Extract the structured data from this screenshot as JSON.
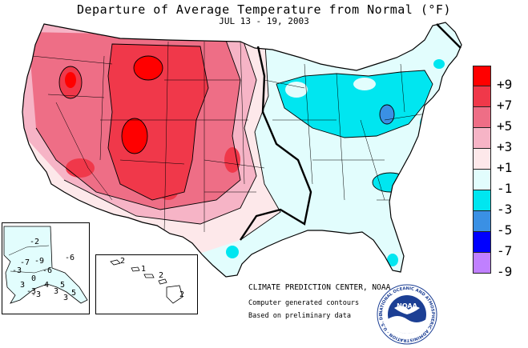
{
  "header": {
    "title": "Departure of Average Temperature from Normal (°F)",
    "dates": "JUL 13 - 19, 2003"
  },
  "legend": {
    "items": [
      {
        "label": "+9",
        "color": "#ff0000"
      },
      {
        "label": "+7",
        "color": "#f0384a"
      },
      {
        "label": "+5",
        "color": "#ee6e86"
      },
      {
        "label": "+3",
        "color": "#f6b4c6"
      },
      {
        "label": "+1",
        "color": "#fde8ea"
      },
      {
        "label": "-1",
        "color": "#e2fdfd"
      },
      {
        "label": "-3",
        "color": "#00e6f0"
      },
      {
        "label": "-5",
        "color": "#3a90e4"
      },
      {
        "label": "-7",
        "color": "#0000ff"
      },
      {
        "label": "-9",
        "color": "#c080ff"
      }
    ]
  },
  "credits": {
    "center": "CLIMATE PREDICTION CENTER, NOAA",
    "line1": "Computer generated contours",
    "line2": "Based on preliminary data"
  },
  "alaska": {
    "labels": [
      "-2",
      "-6",
      "-7",
      "-9",
      "-3",
      "-6",
      "0",
      "3",
      "5",
      "-3",
      "4",
      "3",
      "-3",
      "3",
      "5"
    ]
  },
  "hawaii": {
    "labels": [
      "2",
      "1",
      "2",
      "2"
    ]
  },
  "logo": {
    "text": "NOAA",
    "ring_text": "NATIONAL OCEANIC AND ATMOSPHERIC ADMINISTRATION · U.S. DEPARTMENT OF COMMERCE ·"
  }
}
